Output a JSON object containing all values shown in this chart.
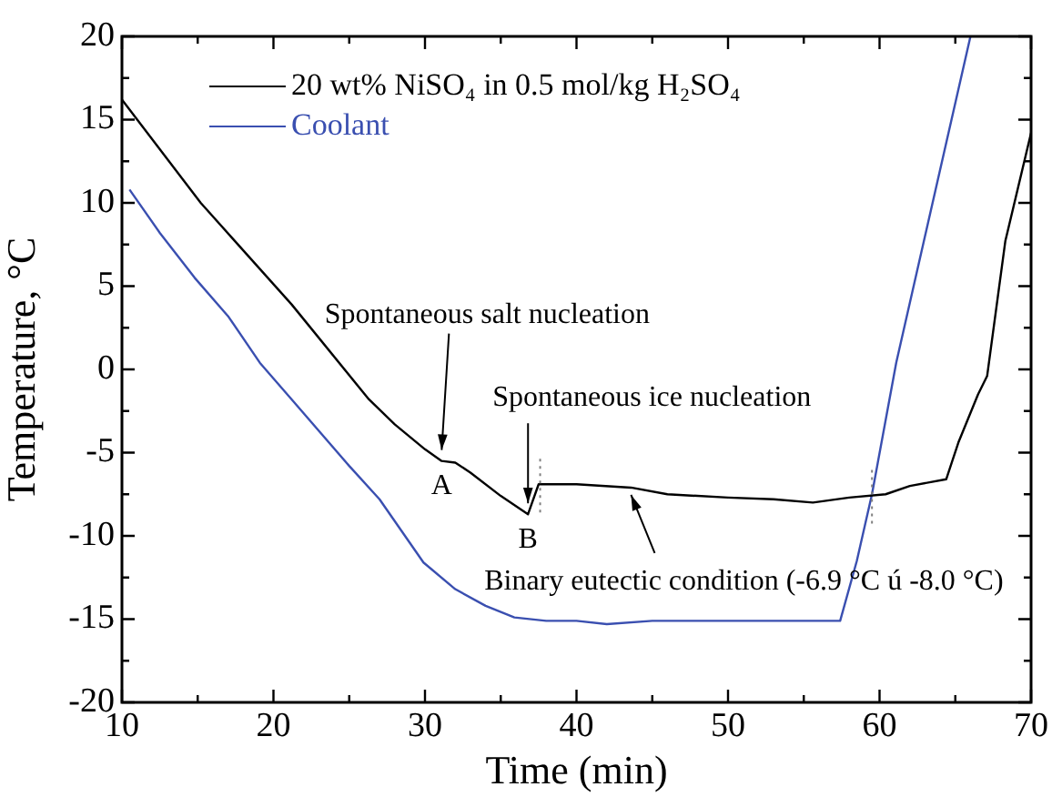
{
  "chart_data": {
    "type": "line",
    "xlabel": "Time (min)",
    "ylabel": "Temperature, °C",
    "xlim": [
      10,
      70
    ],
    "xticks": [
      10,
      {
        "value": 15,
        "label": null
      },
      20,
      {
        "value": 25,
        "label": null
      },
      30,
      {
        "value": 35,
        "label": null
      },
      40,
      {
        "value": 45,
        "label": null
      },
      50,
      {
        "value": 55,
        "label": null
      },
      60,
      {
        "value": 65,
        "label": null
      },
      70
    ],
    "ylim": [
      -20,
      20
    ],
    "yticks": [
      -20,
      {
        "value": -17.5,
        "label": null
      },
      -15,
      {
        "value": -12.5,
        "label": null
      },
      -10,
      {
        "value": -7.5,
        "label": null
      },
      -5,
      {
        "value": -2.5,
        "label": null
      },
      0,
      {
        "value": 2.5,
        "label": null
      },
      5,
      {
        "value": 7.5,
        "label": null
      },
      10,
      {
        "value": 12.5,
        "label": null
      },
      15,
      {
        "value": 17.5,
        "label": null
      },
      20
    ],
    "grid": false,
    "legend": "top left",
    "marker": "none",
    "line_style": "solid",
    "series": [
      {
        "name": "20 wt%  NiSO₄ in 0.5 mol/kg H₂SO₄",
        "color": "#000000",
        "x": [
          10,
          15.2,
          21.2,
          26.3,
          28,
          30,
          31.1,
          32,
          33,
          35,
          36.8,
          37.5,
          40,
          43.6,
          46,
          50,
          53,
          55.6,
          58,
          60.4,
          62,
          64.4,
          65.2,
          66.5,
          67.1,
          68.3,
          70
        ],
        "values": [
          16.2,
          10,
          3.9,
          -1.8,
          -3.3,
          -4.8,
          -5.5,
          -5.6,
          -6.2,
          -7.6,
          -8.7,
          -6.9,
          -6.9,
          -7.1,
          -7.5,
          -7.7,
          -7.8,
          -8.0,
          -7.7,
          -7.5,
          -7.0,
          -6.6,
          -4.4,
          -1.5,
          -0.4,
          7.7,
          14.2
        ]
      },
      {
        "name": "Coolant",
        "color": "#3a4fb0",
        "x": [
          10.5,
          12.5,
          14.8,
          17,
          19.1,
          21.2,
          25,
          27,
          29.9,
          32,
          34,
          35.9,
          38,
          40,
          42,
          45,
          50,
          55,
          57.4,
          58.5,
          59.5,
          61.1,
          63,
          66
        ],
        "values": [
          10.8,
          8.2,
          5.5,
          3.2,
          0.4,
          -1.8,
          -5.8,
          -7.8,
          -11.6,
          -13.2,
          -14.2,
          -14.9,
          -15.1,
          -15.1,
          -15.3,
          -15.1,
          -15.1,
          -15.1,
          -15.1,
          -11.5,
          -7.5,
          0.4,
          8,
          20
        ]
      }
    ],
    "ref_lines": [
      {
        "axis": "x",
        "value": 37.6,
        "line_style": "dotted",
        "color": "#808080"
      },
      {
        "axis": "x",
        "value": 59.5,
        "line_style": "dotted",
        "color": "#808080"
      }
    ],
    "annotations": [
      {
        "text": "Spontaneous salt nucleation",
        "x": 31.1,
        "y": -5.5
      },
      {
        "text": "A",
        "x": 31.1,
        "y": -5.5
      },
      {
        "text": "Spontaneous ice nucleation",
        "x": 36.8,
        "y": -8.7
      },
      {
        "text": "B",
        "x": 36.8,
        "y": -8.7
      },
      {
        "text": "Binary eutectic condition (-6.9 °C ú -8.0 °C)",
        "x": 43.6,
        "y": -7.1
      }
    ]
  }
}
